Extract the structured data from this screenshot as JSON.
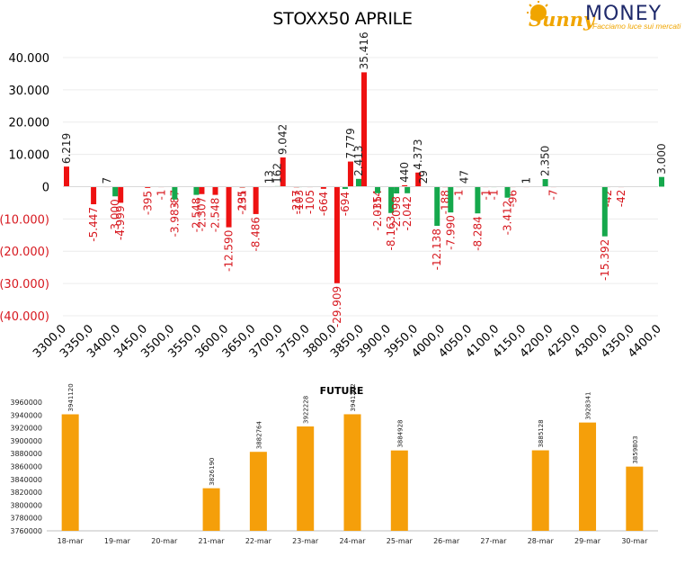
{
  "brand": {
    "name_script": "Sunny",
    "name_caps": "MONEY",
    "tagline": "Facciamo luce sui mercati",
    "colors": {
      "gold": "#f0a500",
      "navy": "#1f2a6b"
    }
  },
  "chart_data": [
    {
      "type": "bar",
      "title": "STOXX50 APRILE",
      "xlabel": "",
      "ylabel": "",
      "ylim": [
        -40000,
        45000
      ],
      "yticks": [
        40000,
        30000,
        20000,
        10000,
        0,
        -10000,
        -20000,
        -30000,
        -40000
      ],
      "ytick_labels": [
        "40.000",
        "30.000",
        "20.000",
        "10.000",
        "0",
        "(10.000)",
        "(20.000)",
        "(30.000)",
        "(40.000)"
      ],
      "x_range": [
        3300,
        4400
      ],
      "xtick_labels": [
        "3300,0",
        "3350,0",
        "3400,0",
        "3450,0",
        "3500,0",
        "3550,0",
        "3600,0",
        "3650,0",
        "3700,0",
        "3750,0",
        "3800,0",
        "3850,0",
        "3900,0",
        "3950,0",
        "4000,0",
        "4050,0",
        "4100,0",
        "4150,0",
        "4200,0",
        "4250,0",
        "4300,0",
        "4350,0",
        "4400,0"
      ],
      "grid": true,
      "colors": {
        "calls": "#ee1111",
        "puts": "#15a84c",
        "label_negative": "#d7181f",
        "label_positive": "#222222"
      },
      "series": [
        {
          "key": "calls",
          "x": [
            3300,
            3350,
            3375,
            3400,
            3450,
            3475,
            3500,
            3550,
            3575,
            3600,
            3625,
            3650,
            3675,
            3700,
            3725,
            3750,
            3775,
            3800,
            3825,
            3850,
            3875,
            3925,
            3950,
            4000,
            4025,
            4075,
            4125,
            4150,
            4200,
            4300,
            4325
          ],
          "values": [
            6219,
            -5447,
            7,
            -4999,
            -395,
            -1,
            -87,
            -2307,
            -2548,
            -12590,
            -295,
            -8486,
            13,
            9042,
            -217,
            -105,
            -664,
            -29909,
            7779,
            35416,
            -114,
            440,
            4373,
            -188,
            -1,
            -1,
            -96,
            1,
            -7,
            -42,
            -42
          ],
          "labels": [
            "6.219",
            "-5.447",
            "7",
            "-4.999",
            "-395",
            "-1",
            "-87",
            "-2.307",
            "-2.548",
            "-12.590",
            "-295",
            "-8.486",
            "13",
            "9.042",
            "-217",
            "-105",
            "-664",
            "-29.909",
            "7.779",
            "35.416",
            "-114",
            "440",
            "4.373",
            "-188",
            "-1",
            "-1",
            "-96",
            "1",
            "-7",
            "-42",
            "-42"
          ]
        },
        {
          "key": "puts",
          "x": [
            3390,
            3500,
            3540,
            3625,
            3690,
            3730,
            3815,
            3840,
            3875,
            3900,
            3910,
            3930,
            3960,
            3985,
            4010,
            4035,
            4060,
            4090,
            4115,
            4185,
            4295,
            4400
          ],
          "values": [
            -3000,
            -3983,
            -2548,
            -131,
            162,
            -103,
            -694,
            2413,
            -2035,
            -8163,
            -2098,
            -2042,
            29,
            -12138,
            -7990,
            47,
            -8284,
            -1,
            -3412,
            2350,
            -15392,
            3000
          ],
          "labels": [
            "-3.000",
            "-3.983",
            "-2.548",
            "-131",
            "162",
            "-103",
            "-694",
            "2.413",
            "-2.035",
            "-8.163",
            "-2.098",
            "-2.042",
            "29",
            "-12.138",
            "-7.990",
            "47",
            "-8.284",
            "-1",
            "-3.412",
            "2.350",
            "-15.392",
            "3.000"
          ]
        }
      ]
    },
    {
      "type": "bar",
      "title": "FUTURE",
      "xlabel": "",
      "ylabel": "",
      "ylim": [
        3760000,
        3960000
      ],
      "yticks": [
        3960000,
        3940000,
        3920000,
        3900000,
        3880000,
        3860000,
        3840000,
        3820000,
        3800000,
        3780000,
        3760000
      ],
      "ytick_labels": [
        "3960000",
        "3940000",
        "3920000",
        "3900000",
        "3880000",
        "3860000",
        "3840000",
        "3820000",
        "3800000",
        "3780000",
        "3760000"
      ],
      "color": "#f59f0a",
      "categories": [
        "18-mar",
        "19-mar",
        "20-mar",
        "21-mar",
        "22-mar",
        "23-mar",
        "24-mar",
        "25-mar",
        "26-mar",
        "27-mar",
        "28-mar",
        "29-mar",
        "30-mar"
      ],
      "values": [
        3941120,
        null,
        null,
        3826190,
        3882764,
        3922228,
        3941202,
        3884928,
        null,
        null,
        3885128,
        3928341,
        3859803
      ],
      "labels": [
        "3941120",
        "",
        "",
        "3826190",
        "3882764",
        "3922228",
        "3941202",
        "3884928",
        "",
        "",
        "3885128",
        "3928341",
        "3859803"
      ]
    }
  ]
}
